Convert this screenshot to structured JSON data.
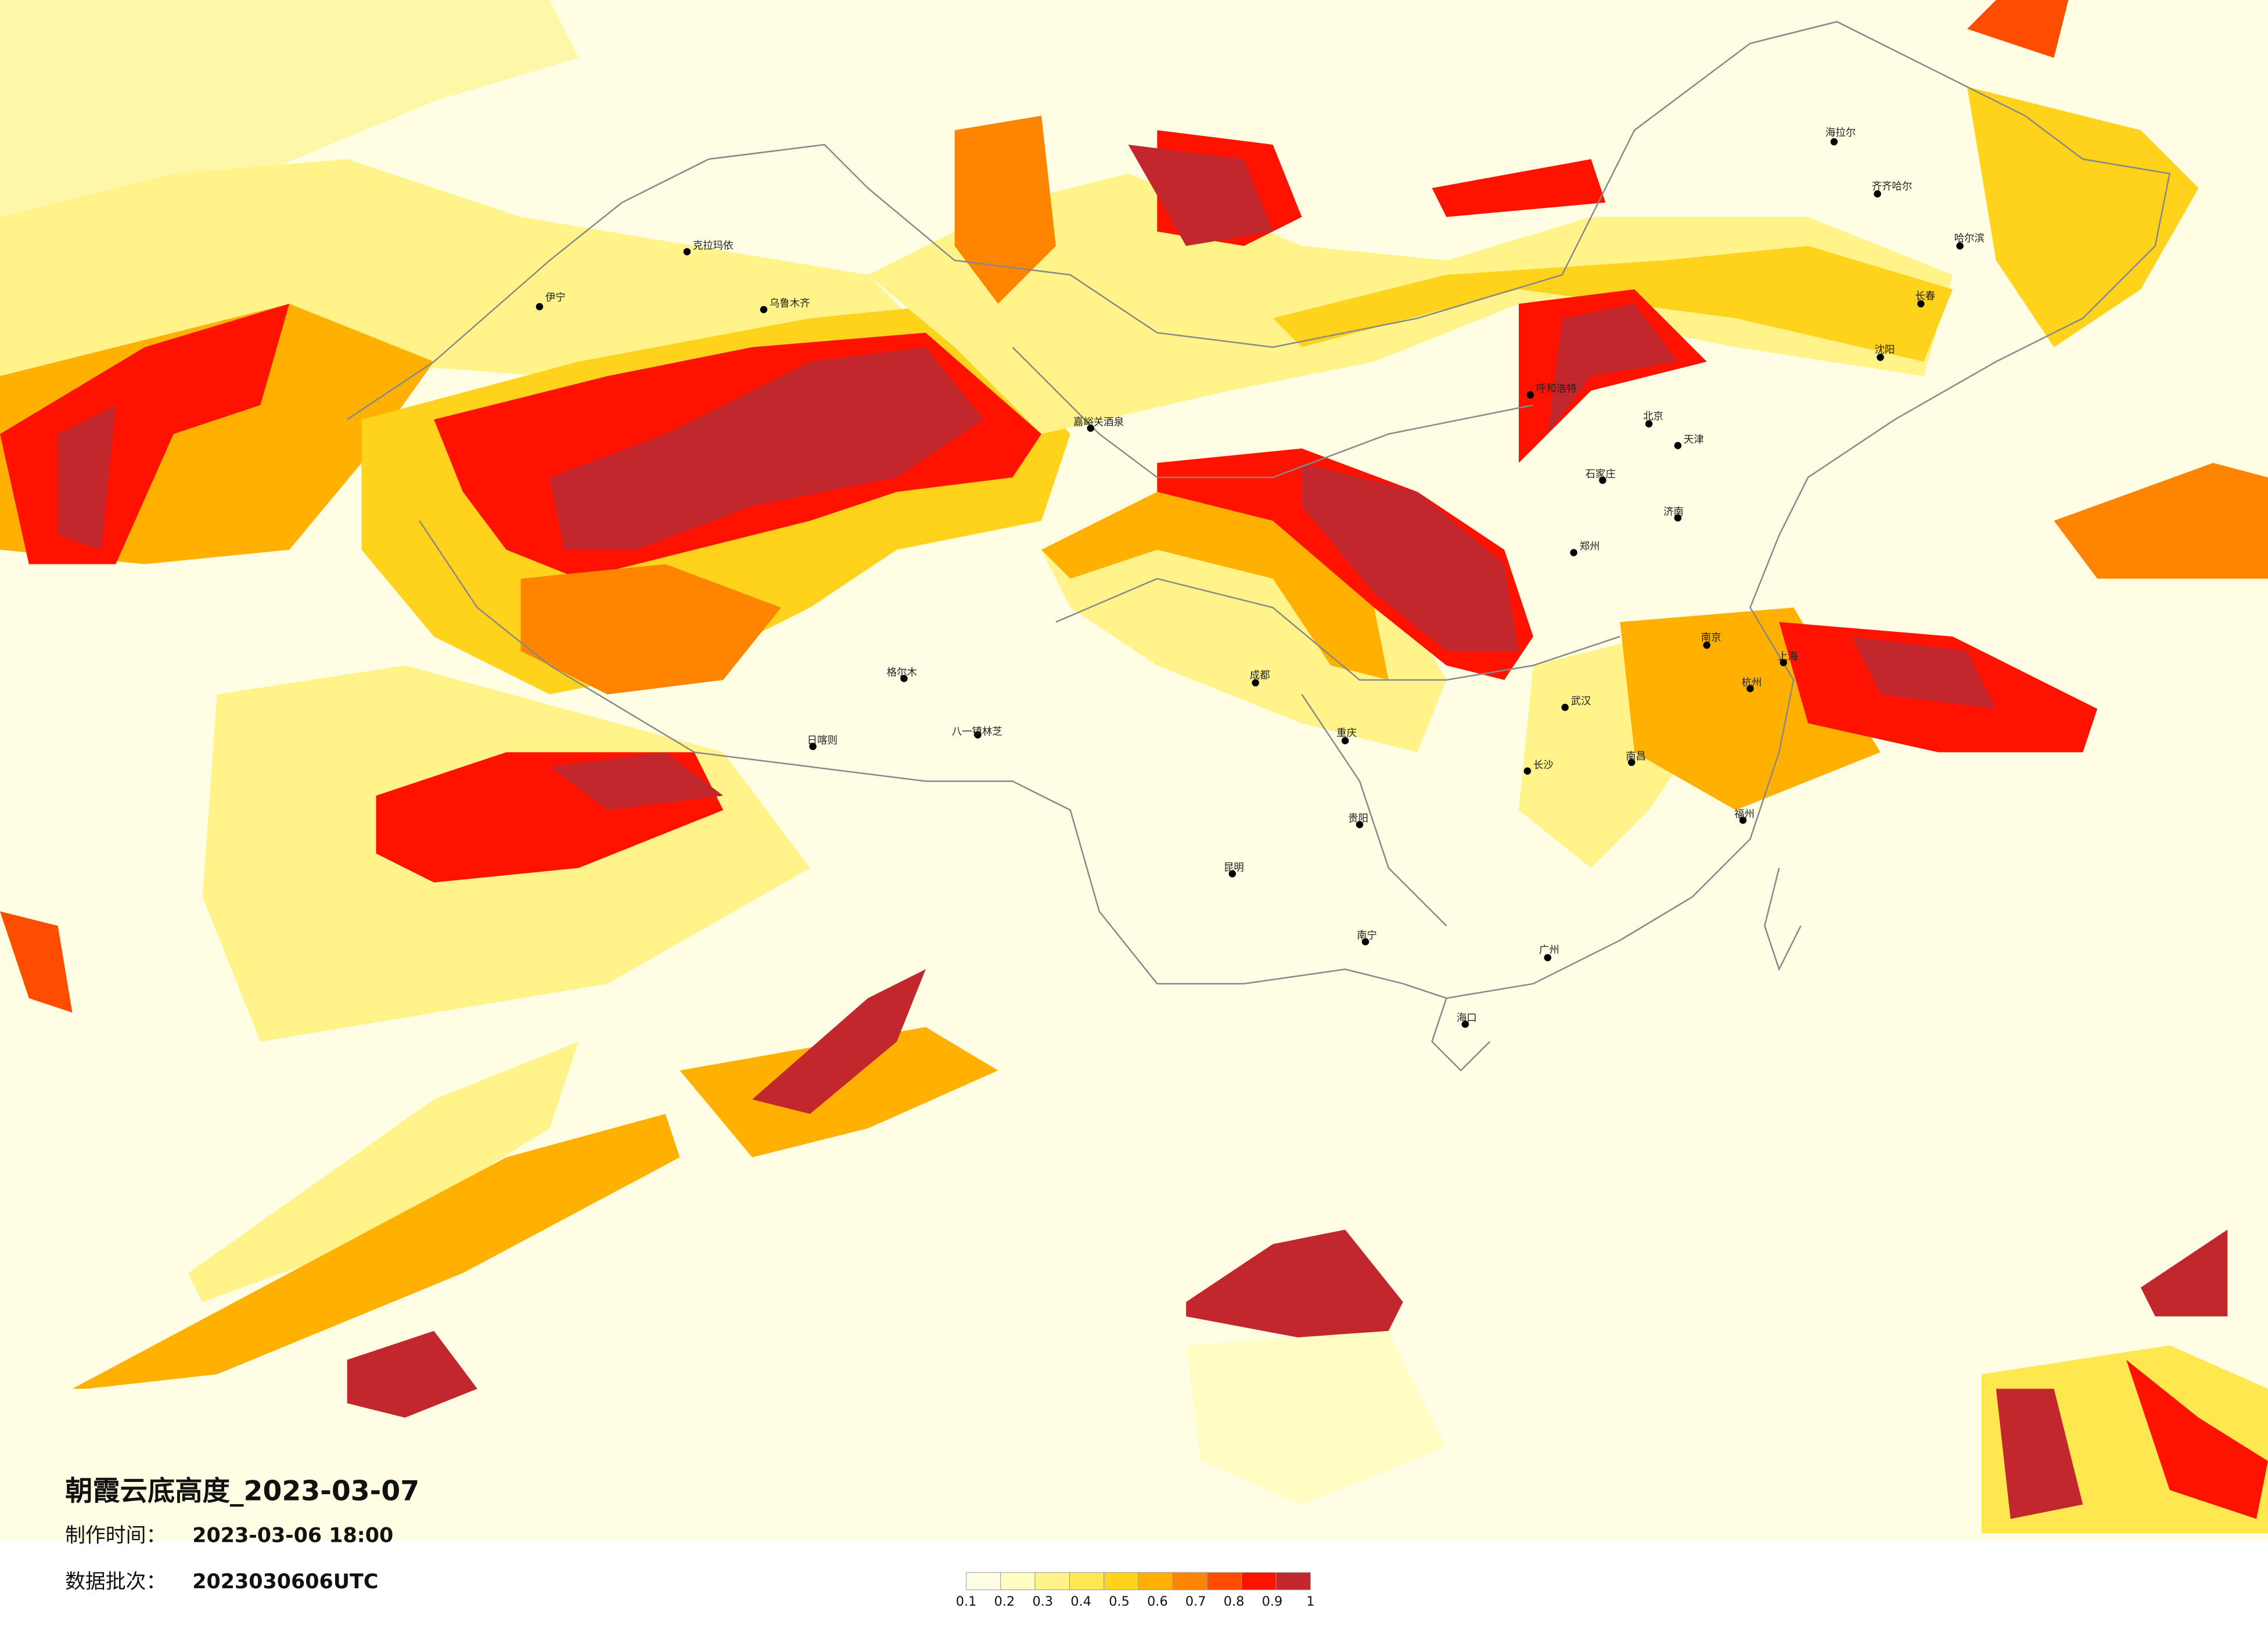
{
  "header": {
    "title": "朝霞云底高度_2023-03-07",
    "made_label": "制作时间：",
    "made_time": "2023-03-06 18:00",
    "batch_label": "数据批次：",
    "batch": "2023030606UTC"
  },
  "legend": {
    "ticks": [
      0.1,
      0.2,
      0.3,
      0.4,
      0.5,
      0.6,
      0.7,
      0.8,
      0.9,
      1
    ],
    "colors": [
      "#ffffe8",
      "#fffcc4",
      "#fff38a",
      "#ffe74f",
      "#ffd21c",
      "#ffb000",
      "#ff8400",
      "#ff4d00",
      "#ff1200",
      "#c1272d"
    ]
  },
  "cities": [
    "克拉玛依",
    "伊宁",
    "乌鲁木齐",
    "嘉峪关酒泉",
    "格尔木",
    "日喀则",
    "八一镇林芝",
    "呼和浩特",
    "北京",
    "天津",
    "石家庄",
    "济南",
    "郑州",
    "成都",
    "重庆",
    "贵阳",
    "昆明",
    "南宁",
    "广州",
    "武汉",
    "长沙",
    "南昌",
    "南京",
    "上海",
    "杭州",
    "福州",
    "海口",
    "沈阳",
    "长春",
    "哈尔滨",
    "齐齐哈尔",
    "海拉尔"
  ]
}
